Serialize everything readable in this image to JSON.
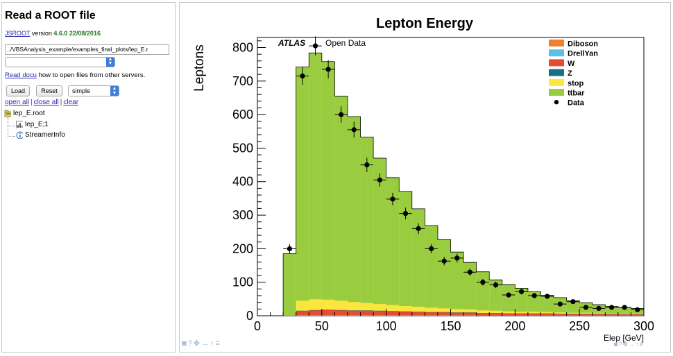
{
  "browser": {
    "title": "Read a ROOT file",
    "version_link": "JSROOT",
    "version_word": "version",
    "version_value": "4.6.0 22/08/2016",
    "file_path": "../VBSAnalysis_example/examples_final_plots/lep_E.r",
    "docu_link": "Read docu",
    "docu_text": "how to open files from other servers.",
    "buttons": {
      "load": "Load",
      "reset": "Reset"
    },
    "layout_value": "simple",
    "links": [
      "open all",
      "close all",
      "clear"
    ],
    "tree": [
      {
        "label": "lep_E.root",
        "icon": "root-file-icon"
      },
      {
        "label": "lep_E;1",
        "icon": "histogram-icon"
      },
      {
        "label": "StreamerInfo",
        "icon": "info-icon"
      }
    ]
  },
  "canvas": {
    "toolbar_icons": [
      "camera-icon",
      "help-icon",
      "move-icon",
      "arrow-right-icon",
      "arrow-up-icon",
      "menu-icon"
    ]
  },
  "colors": {
    "ttbar": "#9acc40",
    "stop": "#fae63f",
    "Z": "#186e87",
    "W": "#e34c2f",
    "DrellYan": "#5ac0e8",
    "Diboson": "#f07f2e",
    "link": "#2a2aa8",
    "version": "#1f7a1f"
  },
  "chart_data": {
    "type": "bar",
    "title": "Lepton Energy",
    "xlabel": "Elep [GeV]",
    "ylabel": "Leptons",
    "atlas_label": "ATLAS",
    "atlas_sub": "Open Data",
    "xlim": [
      0,
      300
    ],
    "ylim": [
      0,
      830
    ],
    "xticks": [
      "0",
      "50",
      "100",
      "150",
      "200",
      "250",
      "300"
    ],
    "yticks": [
      "0",
      "100",
      "200",
      "300",
      "400",
      "500",
      "600",
      "700",
      "800"
    ],
    "legend_position": "top-right",
    "bin_edges": [
      20,
      30,
      40,
      50,
      60,
      70,
      80,
      90,
      100,
      110,
      120,
      130,
      140,
      150,
      160,
      170,
      180,
      190,
      200,
      210,
      220,
      230,
      240,
      250,
      260,
      270,
      280,
      290,
      300
    ],
    "stack": [
      {
        "name": "Diboson",
        "values": [
          0,
          1,
          1,
          1,
          1,
          1,
          1,
          1,
          1,
          1,
          1,
          1,
          1,
          1,
          1,
          1,
          1,
          1,
          1,
          1,
          1,
          1,
          1,
          1,
          1,
          1,
          1,
          1
        ]
      },
      {
        "name": "DrellYan",
        "values": [
          0,
          1,
          1,
          1,
          1,
          1,
          1,
          1,
          1,
          1,
          1,
          1,
          1,
          1,
          1,
          0,
          0,
          0,
          0,
          0,
          0,
          0,
          0,
          0,
          0,
          0,
          0,
          0
        ]
      },
      {
        "name": "W",
        "values": [
          0,
          12,
          14,
          15,
          14,
          13,
          13,
          12,
          11,
          10,
          9,
          8,
          8,
          7,
          7,
          6,
          6,
          5,
          5,
          5,
          5,
          4,
          4,
          4,
          4,
          3,
          3,
          3
        ]
      },
      {
        "name": "Z",
        "values": [
          0,
          1,
          1,
          1,
          1,
          1,
          1,
          1,
          1,
          1,
          1,
          1,
          1,
          1,
          1,
          1,
          1,
          1,
          1,
          1,
          1,
          1,
          1,
          1,
          1,
          1,
          1,
          1
        ]
      },
      {
        "name": "stop",
        "values": [
          0,
          30,
          32,
          30,
          28,
          25,
          22,
          20,
          18,
          16,
          15,
          13,
          11,
          10,
          9,
          8,
          7,
          6,
          5,
          5,
          4,
          4,
          3,
          3,
          3,
          2,
          2,
          2
        ]
      },
      {
        "name": "ttbar",
        "values": [
          185,
          697,
          735,
          710,
          610,
          553,
          495,
          435,
          380,
          342,
          292,
          245,
          205,
          170,
          140,
          115,
          92,
          80,
          70,
          60,
          50,
          44,
          36,
          30,
          24,
          21,
          18,
          15
        ]
      }
    ],
    "data": {
      "name": "Data",
      "x": [
        25,
        35,
        45,
        55,
        65,
        75,
        85,
        95,
        105,
        115,
        125,
        135,
        145,
        155,
        165,
        175,
        185,
        195,
        205,
        215,
        225,
        235,
        245,
        255,
        265,
        275,
        285,
        295
      ],
      "y": [
        200,
        715,
        805,
        735,
        600,
        555,
        450,
        405,
        348,
        305,
        260,
        200,
        163,
        172,
        130,
        100,
        92,
        62,
        72,
        60,
        58,
        35,
        42,
        25,
        22,
        25,
        25,
        18
      ]
    }
  }
}
